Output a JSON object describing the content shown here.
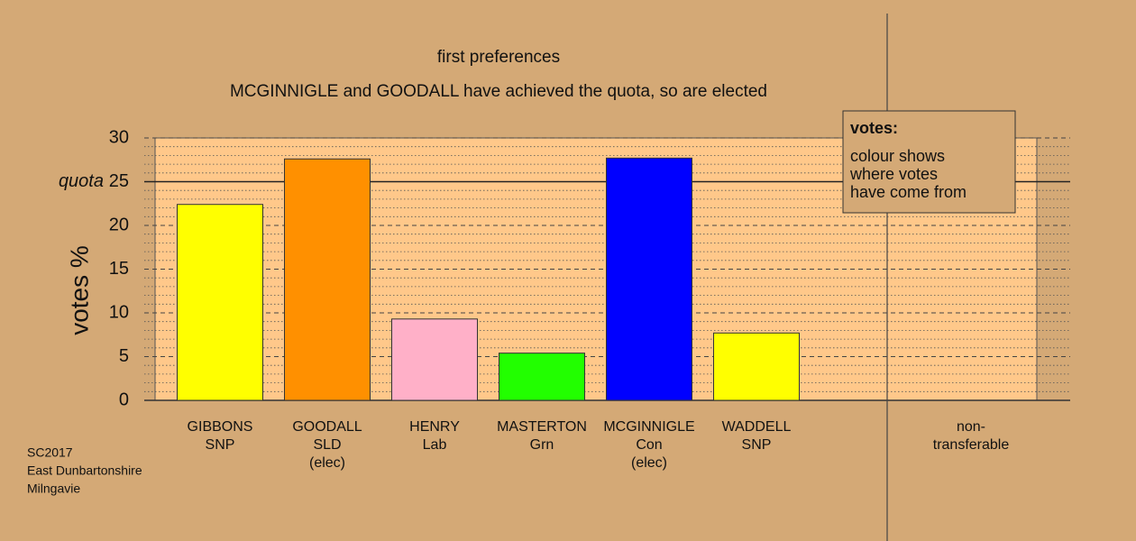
{
  "chart_data": {
    "type": "bar",
    "title": "first preferences",
    "subtitle": "MCGINNIGLE and GOODALL have achieved the quota, so are elected",
    "ylabel": "votes %",
    "categories": [
      [
        "GIBBONS",
        "SNP"
      ],
      [
        "GOODALL",
        "SLD",
        "(elec)"
      ],
      [
        "HENRY",
        "Lab"
      ],
      [
        "MASTERTON",
        "Grn"
      ],
      [
        "MCGINNIGLE",
        "Con",
        "(elec)"
      ],
      [
        "WADDELL",
        "SNP"
      ],
      [
        "non-",
        "transferable"
      ]
    ],
    "values": [
      22.4,
      27.6,
      9.3,
      5.4,
      27.7,
      7.7,
      0
    ],
    "colors": [
      "#ffff00",
      "#ff9000",
      "#ffb0c8",
      "#22ff00",
      "#0000ff",
      "#ffff00",
      "#ffc88a"
    ],
    "ylim": [
      0,
      30
    ],
    "yticks": [
      0,
      5,
      10,
      15,
      20,
      25,
      30
    ],
    "yminor_ticks": [
      1,
      2,
      3,
      4,
      6,
      7,
      8,
      9,
      11,
      12,
      13,
      14,
      16,
      17,
      18,
      19,
      21,
      22,
      23,
      24,
      26,
      27,
      28,
      29
    ],
    "quota": {
      "label": "quota",
      "value": 25
    },
    "legend": {
      "title": "votes:",
      "lines": [
        "colour shows",
        "where votes",
        "have come from"
      ]
    },
    "footnote": [
      "SC2017",
      "East Dunbartonshire",
      "Milngavie"
    ],
    "grid": true
  }
}
